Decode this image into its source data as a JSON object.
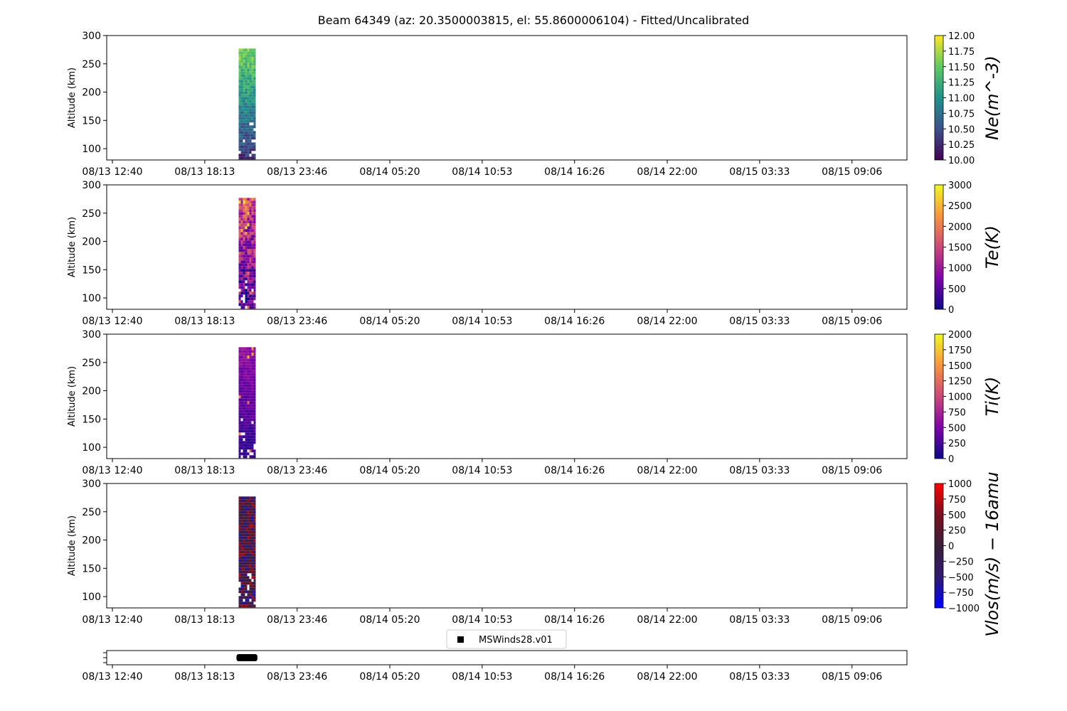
{
  "title": "Beam 64349 (az: 20.3500003815, el: 55.8600006104) - Fitted/Uncalibrated",
  "x_tick_labels": [
    "08/13 12:40",
    "08/13 18:13",
    "08/13 23:46",
    "08/14 05:20",
    "08/14 10:53",
    "08/14 16:26",
    "08/14 22:00",
    "08/15 03:33",
    "08/15 09:06"
  ],
  "legend_label": "MSWinds28.v01",
  "chart_data": [
    {
      "type": "heatmap",
      "parameter": "Ne",
      "ylabel": "Altitude (km)",
      "ylim": [
        80,
        300
      ],
      "y_ticks": [
        100,
        150,
        200,
        250,
        300
      ],
      "data_time_range": [
        "08/13 20:15",
        "08/13 21:15"
      ],
      "data_altitude_range": [
        85,
        277
      ],
      "colorbar": {
        "label": "Ne(m^-3)",
        "range": [
          10.0,
          12.0
        ],
        "tick_labels": [
          "10.00",
          "10.25",
          "10.50",
          "10.75",
          "11.00",
          "11.25",
          "11.50",
          "11.75",
          "12.00"
        ],
        "colormap": "viridis",
        "colors": [
          "#440154",
          "#3b528b",
          "#21918c",
          "#5ec962",
          "#fde725"
        ]
      }
    },
    {
      "type": "heatmap",
      "parameter": "Te",
      "ylabel": "Altitude (km)",
      "ylim": [
        80,
        300
      ],
      "y_ticks": [
        100,
        150,
        200,
        250,
        300
      ],
      "data_time_range": [
        "08/13 20:15",
        "08/13 21:15"
      ],
      "data_altitude_range": [
        85,
        277
      ],
      "colorbar": {
        "label": "Te(K)",
        "range": [
          0,
          3000
        ],
        "tick_labels": [
          "0",
          "500",
          "1000",
          "1500",
          "2000",
          "2500",
          "3000"
        ],
        "colormap": "plasma",
        "colors": [
          "#0d0887",
          "#7e03a8",
          "#cc4778",
          "#f89540",
          "#f0f921"
        ]
      }
    },
    {
      "type": "heatmap",
      "parameter": "Ti",
      "ylabel": "Altitude (km)",
      "ylim": [
        80,
        300
      ],
      "y_ticks": [
        100,
        150,
        200,
        250,
        300
      ],
      "data_time_range": [
        "08/13 20:15",
        "08/13 21:15"
      ],
      "data_altitude_range": [
        85,
        277
      ],
      "colorbar": {
        "label": "Ti(K)",
        "range": [
          0,
          2000
        ],
        "tick_labels": [
          "0",
          "250",
          "500",
          "750",
          "1000",
          "1250",
          "1500",
          "1750",
          "2000"
        ],
        "colormap": "plasma",
        "colors": [
          "#0d0887",
          "#7e03a8",
          "#cc4778",
          "#f89540",
          "#f0f921"
        ]
      }
    },
    {
      "type": "heatmap",
      "parameter": "Vlos",
      "ylabel": "Altitude (km)",
      "ylim": [
        80,
        300
      ],
      "y_ticks": [
        100,
        150,
        200,
        250,
        300
      ],
      "data_time_range": [
        "08/13 20:15",
        "08/13 21:15"
      ],
      "data_altitude_range": [
        85,
        277
      ],
      "colorbar": {
        "label": "Vlos(m/s) − 16amu",
        "range": [
          -1000,
          1000
        ],
        "tick_labels": [
          "−1000",
          "−750",
          "−500",
          "−250",
          "0",
          "250",
          "500",
          "750",
          "1000"
        ],
        "colormap": "seismic",
        "colors": [
          "#0000ff",
          "#301a70",
          "#3a1f3a",
          "#7a1020",
          "#ff0000"
        ]
      }
    }
  ],
  "legend_strip": {
    "series": "MSWinds28.v01",
    "data_time_range": [
      "08/13 20:15",
      "08/13 21:15"
    ],
    "color": "#000000"
  }
}
